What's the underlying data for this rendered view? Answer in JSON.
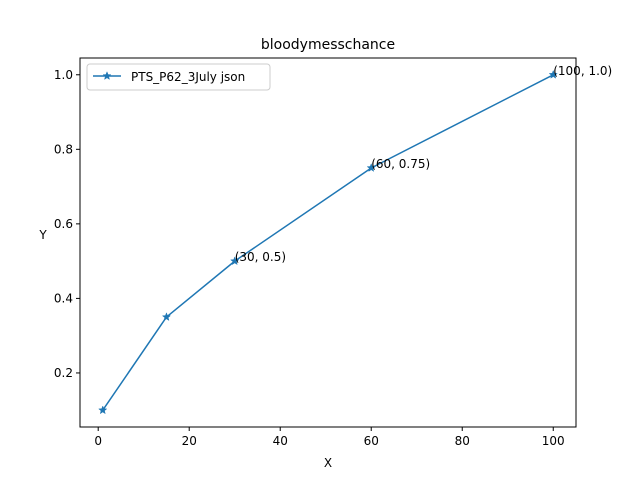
{
  "chart_data": {
    "type": "line",
    "title": "bloodymesschance",
    "xlabel": "X",
    "ylabel": "Y",
    "xlim": [
      -4,
      105
    ],
    "ylim": [
      0.055,
      1.045
    ],
    "xticks": [
      0,
      20,
      40,
      60,
      80,
      100
    ],
    "yticks": [
      0.2,
      0.4,
      0.6,
      0.8,
      1.0
    ],
    "xtick_labels": [
      "0",
      "20",
      "40",
      "60",
      "80",
      "100"
    ],
    "ytick_labels": [
      "0.2",
      "0.4",
      "0.6",
      "0.8",
      "1.0"
    ],
    "grid": false,
    "legend_position": "upper-left",
    "series": [
      {
        "name": "PTS_P62_3July json",
        "color": "#1f77b4",
        "marker": "star",
        "x": [
          1,
          15,
          30,
          60,
          100
        ],
        "y": [
          0.1,
          0.35,
          0.5,
          0.75,
          1.0
        ]
      }
    ],
    "annotations": [
      {
        "text": "(30, 0.5)",
        "x": 30,
        "y": 0.5
      },
      {
        "text": "(60, 0.75)",
        "x": 60,
        "y": 0.75
      },
      {
        "text": "(100, 1.0)",
        "x": 100,
        "y": 1.0
      }
    ]
  }
}
